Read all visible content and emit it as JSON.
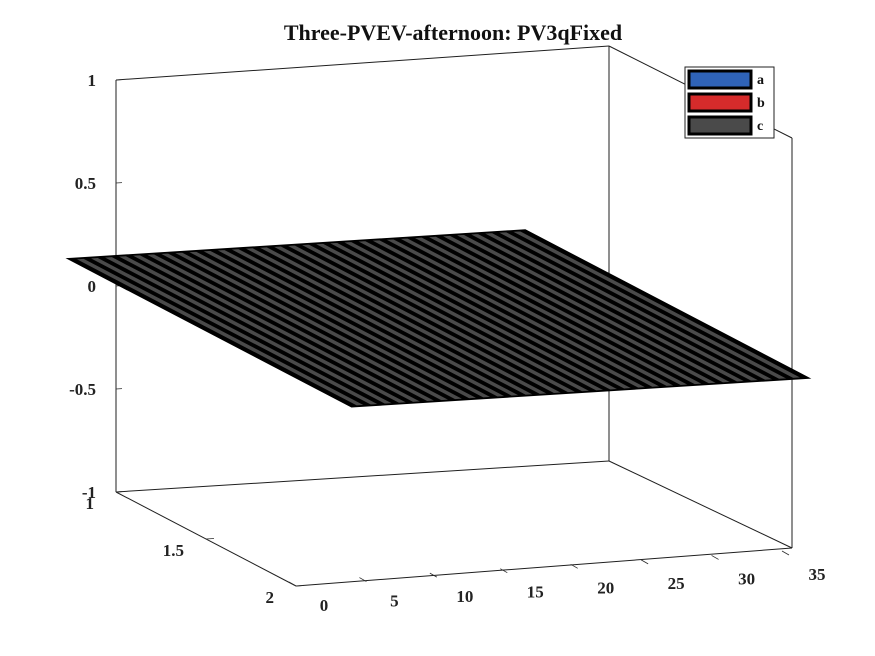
{
  "chart_data": {
    "type": "bar3",
    "title": "Three-PVEV-afternoon: PV3qFixed",
    "xlabel": "",
    "ylabel": "",
    "zlabel": "",
    "x_ticks": [
      0,
      5,
      10,
      15,
      20,
      25,
      30,
      35
    ],
    "y_ticks": [
      1,
      1.5,
      2
    ],
    "z_ticks": [
      1,
      0.5,
      0,
      -0.5,
      -1
    ],
    "x_tick_labels": [
      "0",
      "5",
      "10",
      "15",
      "20",
      "25",
      "30",
      "35"
    ],
    "y_tick_labels": [
      "1",
      "1.5",
      "2"
    ],
    "z_tick_labels": [
      "1",
      "0.5",
      "0",
      "-0.5",
      "-1"
    ],
    "xlim": [
      0,
      35
    ],
    "ylim": [
      1,
      2
    ],
    "zlim": [
      -1,
      1
    ],
    "x": [
      1,
      2,
      3,
      4,
      5,
      6,
      7,
      8,
      9,
      10,
      11,
      12,
      13,
      14,
      15,
      16,
      17,
      18,
      19,
      20,
      21,
      22,
      23,
      24,
      25,
      26,
      27,
      28,
      29,
      30,
      31,
      32
    ],
    "series": [
      {
        "name": "a",
        "color": "#2f63b8",
        "values": [
          0,
          0,
          0,
          0,
          0,
          0,
          0,
          0,
          0,
          0,
          0,
          0,
          0,
          0,
          0,
          0,
          0,
          0,
          0,
          0,
          0,
          0,
          0,
          0,
          0,
          0,
          0,
          0,
          0,
          0,
          0,
          0
        ]
      },
      {
        "name": "b",
        "color": "#d62b2b",
        "values": [
          0,
          0,
          0,
          0,
          0,
          0,
          0,
          0,
          0,
          0,
          0,
          0,
          0,
          0,
          0,
          0,
          0,
          0,
          0,
          0,
          0,
          0,
          0,
          0,
          0,
          0,
          0,
          0,
          0,
          0,
          0,
          0
        ]
      },
      {
        "name": "c",
        "color": "#4a4a4a",
        "values": [
          0,
          0,
          0,
          0,
          0,
          0,
          0,
          0,
          0,
          0,
          0,
          0,
          0,
          0,
          0,
          0,
          0,
          0,
          0,
          0,
          0,
          0,
          0,
          0,
          0,
          0,
          0,
          0,
          0,
          0,
          0,
          0
        ]
      }
    ],
    "legend_position": "top-right",
    "grid": false
  }
}
